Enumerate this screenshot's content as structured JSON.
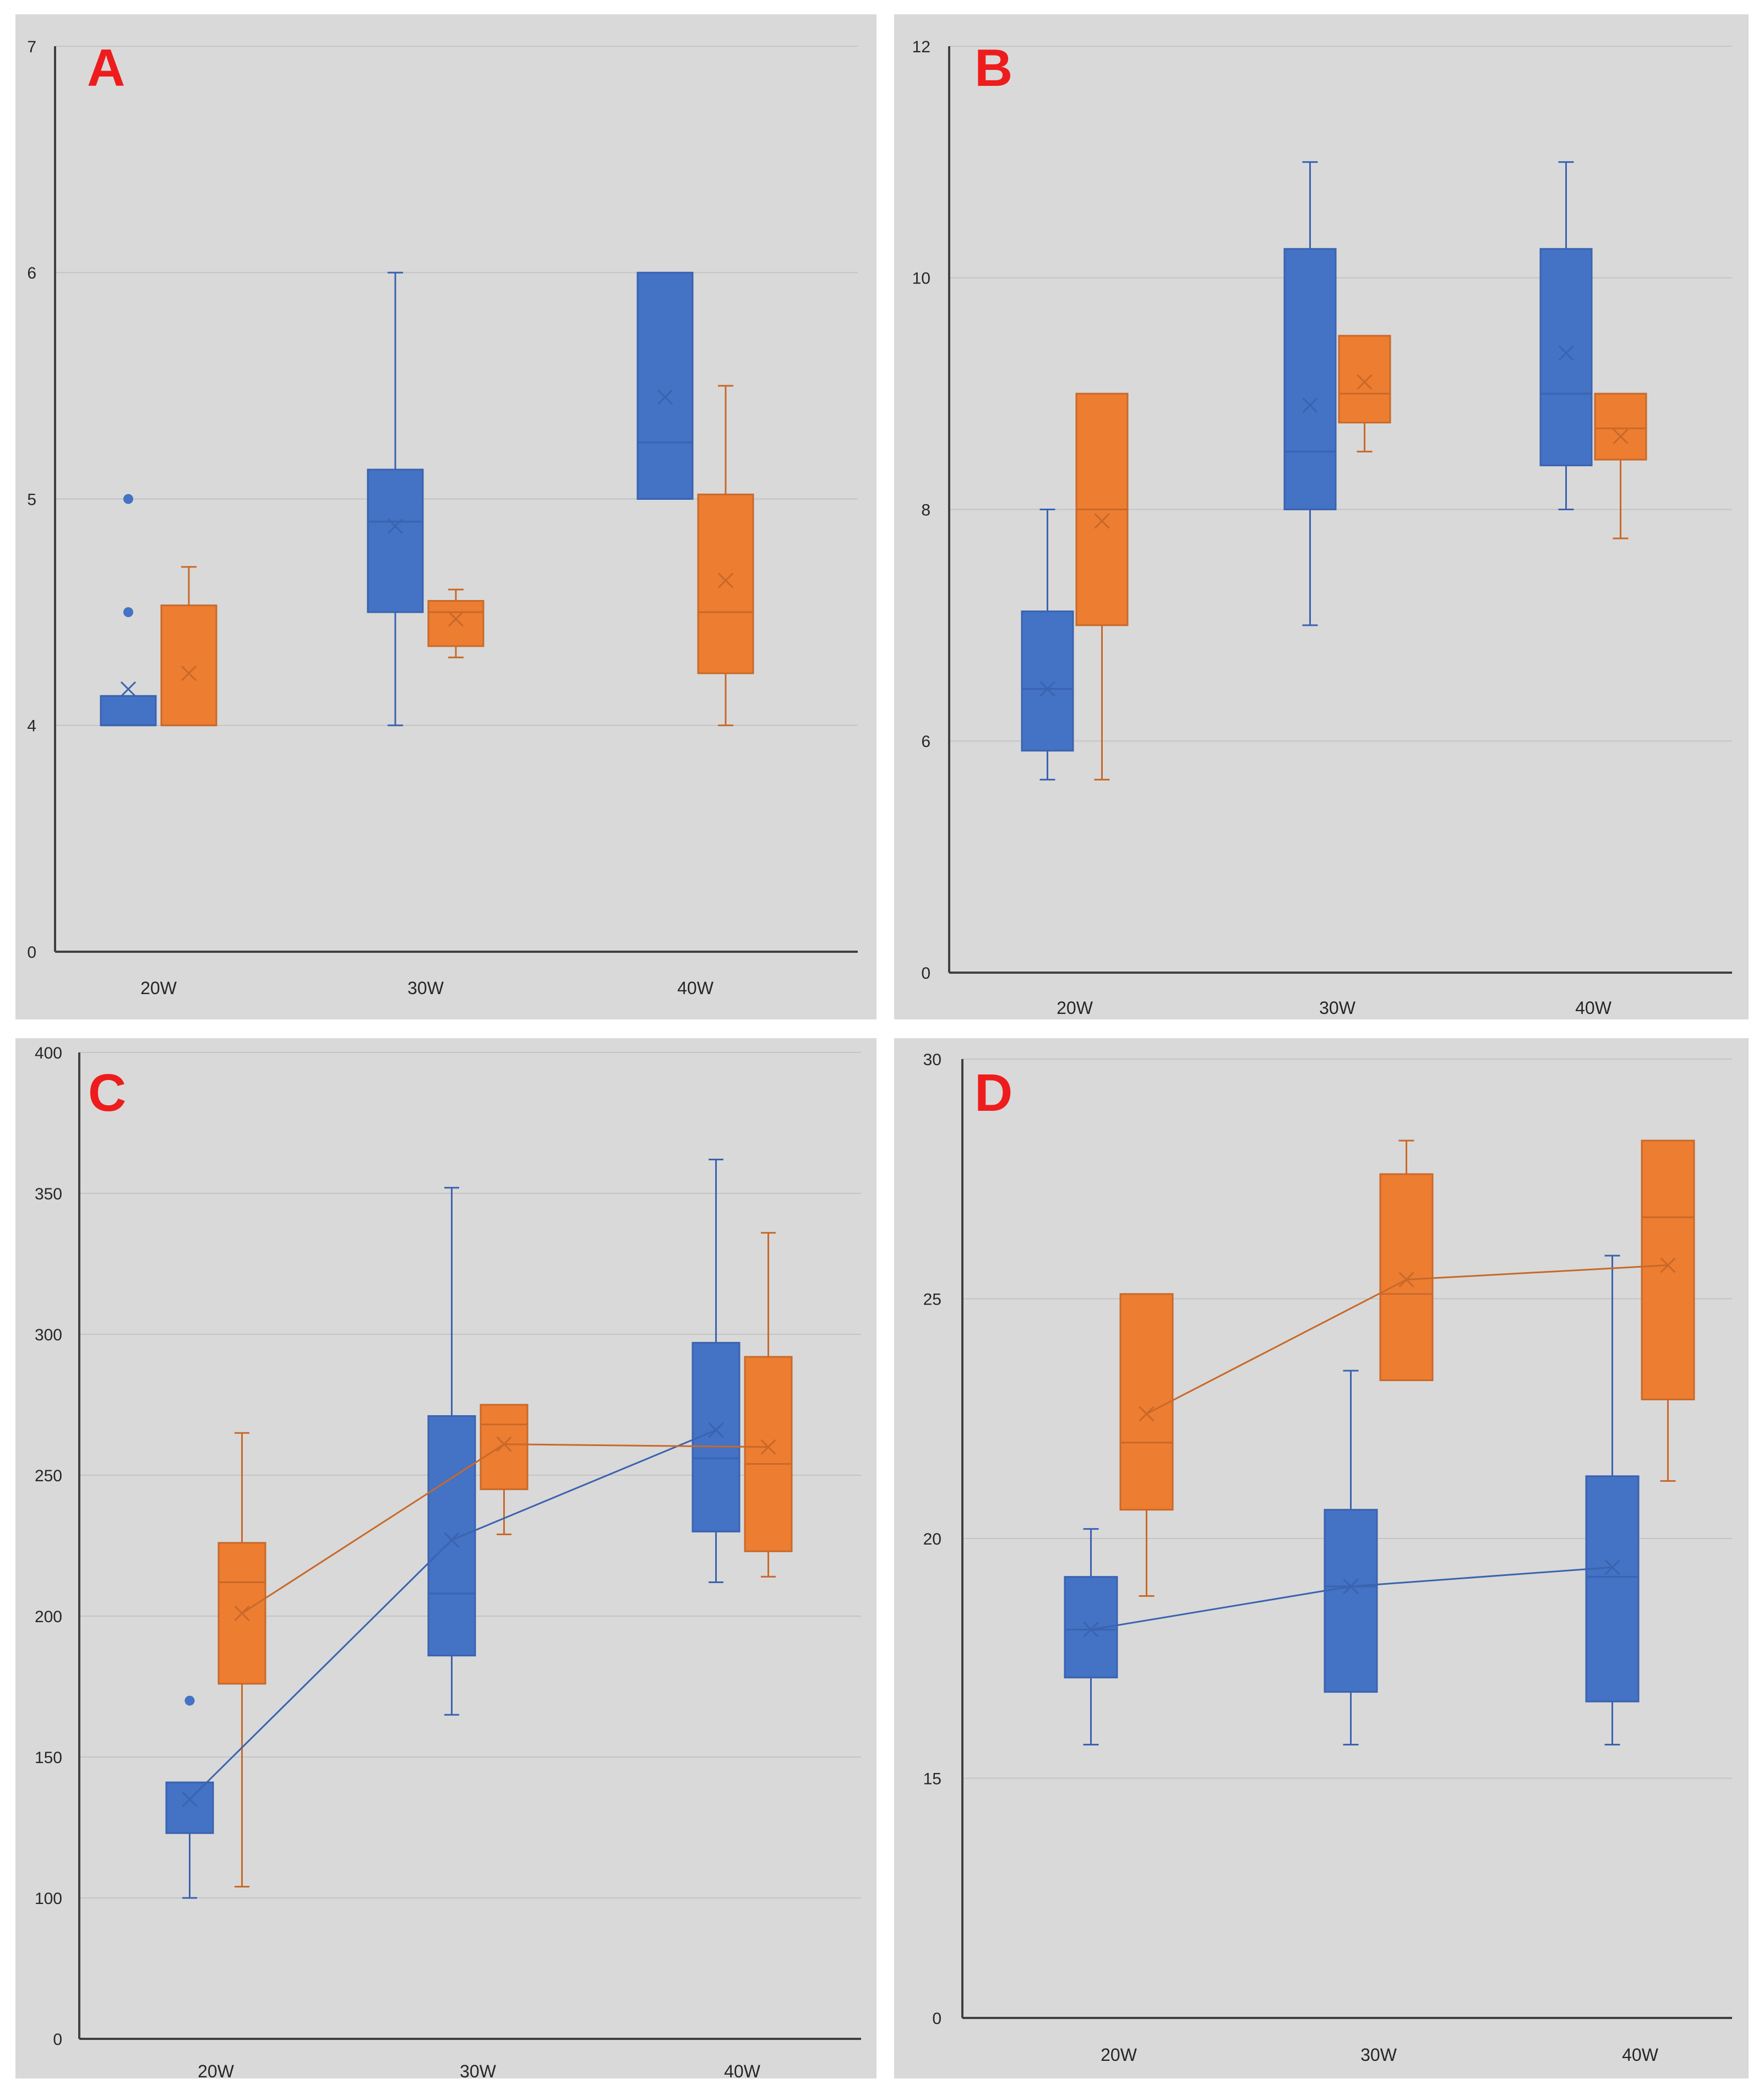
{
  "colors": {
    "series1": "#4472c4",
    "series2": "#ed7d31",
    "series1_line": "#3a63b0",
    "series2_line": "#c8692a",
    "background": "#d9d9d9",
    "gridline": "#c4c4c4",
    "axis": "#404040",
    "letter": "#ee1c1c"
  },
  "chart_data": [
    {
      "type": "box",
      "panel_label": "A",
      "title": "",
      "xlabel": "",
      "ylabel": "",
      "categories": [
        "20W",
        "30W",
        "40W"
      ],
      "yticks": [
        0,
        4,
        5,
        6,
        7
      ],
      "axis_break_below": 4,
      "ylim": [
        0,
        7
      ],
      "connect_means": false,
      "legend": "none",
      "grid": true,
      "series": [
        {
          "color_key": "series1",
          "boxes": [
            {
              "min": 4.0,
              "q1": 4.0,
              "median": 4.0,
              "q3": 4.13,
              "max": 4.13,
              "mean": 4.16,
              "outliers": [
                5.0,
                4.5
              ]
            },
            {
              "min": 4.0,
              "q1": 4.5,
              "median": 4.9,
              "q3": 5.13,
              "max": 6.0,
              "mean": 4.88,
              "outliers": []
            },
            {
              "min": 5.0,
              "q1": 5.0,
              "median": 5.25,
              "q3": 6.0,
              "max": 6.0,
              "mean": 5.45,
              "outliers": []
            }
          ]
        },
        {
          "color_key": "series2",
          "boxes": [
            {
              "min": 4.0,
              "q1": 4.0,
              "median": 4.0,
              "q3": 4.53,
              "max": 4.7,
              "mean": 4.23,
              "outliers": []
            },
            {
              "min": 4.3,
              "q1": 4.35,
              "median": 4.5,
              "q3": 4.55,
              "max": 4.6,
              "mean": 4.47,
              "outliers": []
            },
            {
              "min": 4.0,
              "q1": 4.23,
              "median": 4.5,
              "q3": 5.02,
              "max": 5.5,
              "mean": 4.64,
              "outliers": []
            }
          ]
        }
      ]
    },
    {
      "type": "box",
      "panel_label": "B",
      "title": "",
      "xlabel": "",
      "ylabel": "",
      "categories": [
        "20W",
        "30W",
        "40W"
      ],
      "yticks": [
        0,
        6,
        8,
        10,
        12
      ],
      "axis_break_below": 6,
      "ylim": [
        0,
        12
      ],
      "connect_means": false,
      "legend": "none",
      "grid": true,
      "series": [
        {
          "color_key": "series1",
          "boxes": [
            {
              "min": 5.0,
              "q1": 5.75,
              "median": 6.45,
              "q3": 7.12,
              "max": 8.0,
              "mean": 6.45,
              "outliers": []
            },
            {
              "min": 7.0,
              "q1": 8.0,
              "median": 8.5,
              "q3": 10.25,
              "max": 11.0,
              "mean": 8.9,
              "outliers": []
            },
            {
              "min": 8.0,
              "q1": 8.38,
              "median": 9.0,
              "q3": 10.25,
              "max": 11.0,
              "mean": 9.35,
              "outliers": []
            }
          ]
        },
        {
          "color_key": "series2",
          "boxes": [
            {
              "min": 5.0,
              "q1": 7.0,
              "median": 8.0,
              "q3": 9.0,
              "max": 9.0,
              "mean": 7.9,
              "outliers": []
            },
            {
              "min": 8.5,
              "q1": 8.75,
              "median": 9.0,
              "q3": 9.5,
              "max": 9.5,
              "mean": 9.1,
              "outliers": []
            },
            {
              "min": 7.75,
              "q1": 8.43,
              "median": 8.7,
              "q3": 9.0,
              "max": 9.0,
              "mean": 8.63,
              "outliers": []
            }
          ]
        }
      ]
    },
    {
      "type": "box",
      "panel_label": "C",
      "title": "",
      "xlabel": "",
      "ylabel": "",
      "categories": [
        "20W",
        "30W",
        "40W"
      ],
      "yticks": [
        0,
        100,
        150,
        200,
        250,
        300,
        350,
        400
      ],
      "axis_break_below": 100,
      "ylim": [
        0,
        400
      ],
      "connect_means": true,
      "legend": "none",
      "grid": true,
      "series": [
        {
          "color_key": "series1",
          "boxes": [
            {
              "min": 100,
              "q1": 123,
              "median": 141,
              "q3": 141,
              "max": 141,
              "mean": 135,
              "outliers": [
                170
              ]
            },
            {
              "min": 165,
              "q1": 186,
              "median": 208,
              "q3": 271,
              "max": 352,
              "mean": 227,
              "outliers": []
            },
            {
              "min": 212,
              "q1": 230,
              "median": 256,
              "q3": 297,
              "max": 362,
              "mean": 266,
              "outliers": []
            }
          ]
        },
        {
          "color_key": "series2",
          "boxes": [
            {
              "min": 104,
              "q1": 176,
              "median": 212,
              "q3": 226,
              "max": 265,
              "mean": 201,
              "outliers": []
            },
            {
              "min": 229,
              "q1": 245,
              "median": 268,
              "q3": 275,
              "max": 275,
              "mean": 261,
              "outliers": []
            },
            {
              "min": 214,
              "q1": 223,
              "median": 254,
              "q3": 292,
              "max": 336,
              "mean": 260,
              "outliers": []
            }
          ]
        }
      ]
    },
    {
      "type": "box",
      "panel_label": "D",
      "title": "",
      "xlabel": "",
      "ylabel": "",
      "categories": [
        "20W",
        "30W",
        "40W"
      ],
      "yticks": [
        0,
        15,
        20,
        25,
        30
      ],
      "axis_break_below": 15,
      "ylim": [
        0,
        30
      ],
      "connect_means": true,
      "legend": "none",
      "grid": true,
      "series": [
        {
          "color_key": "series1",
          "boxes": [
            {
              "min": 15.7,
              "q1": 17.1,
              "median": 18.1,
              "q3": 19.2,
              "max": 20.2,
              "mean": 18.1,
              "outliers": []
            },
            {
              "min": 15.7,
              "q1": 16.8,
              "median": 19.0,
              "q3": 20.6,
              "max": 23.5,
              "mean": 19.0,
              "outliers": []
            },
            {
              "min": 15.7,
              "q1": 16.6,
              "median": 19.2,
              "q3": 21.3,
              "max": 25.9,
              "mean": 19.4,
              "outliers": []
            }
          ]
        },
        {
          "color_key": "series2",
          "boxes": [
            {
              "min": 18.8,
              "q1": 20.6,
              "median": 22.0,
              "q3": 25.1,
              "max": 25.1,
              "mean": 22.6,
              "outliers": []
            },
            {
              "min": 23.3,
              "q1": 23.3,
              "median": 25.1,
              "q3": 27.6,
              "max": 28.3,
              "mean": 25.4,
              "outliers": []
            },
            {
              "min": 21.2,
              "q1": 22.9,
              "median": 26.7,
              "q3": 28.3,
              "max": 28.3,
              "mean": 25.7,
              "outliers": []
            }
          ]
        }
      ]
    }
  ]
}
